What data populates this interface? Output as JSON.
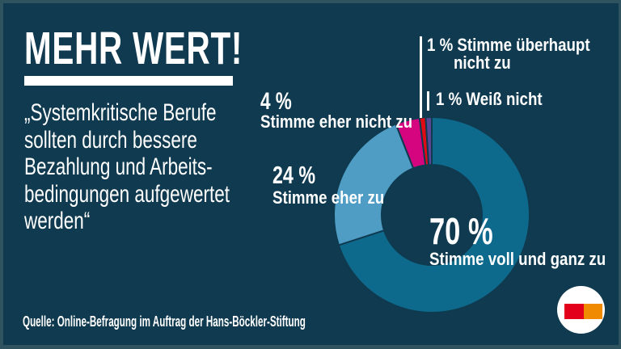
{
  "header": {
    "title": "MEHR WERT!"
  },
  "quote": {
    "text": "„Systemkritische Berufe\nsollten durch bessere\nBezahlung und Arbeits-\nbedingungen aufgewertet\nwerden“"
  },
  "source": {
    "text": "Quelle: Online-Befragung im Auftrag der Hans-Böckler-Stiftung"
  },
  "chart_data": {
    "type": "pie",
    "subtype": "donut",
    "title": "MEHR WERT!",
    "question": "Systemkritische Berufe sollten durch bessere Bezahlung und Arbeitsbedingungen aufgewertet werden",
    "unit": "%",
    "direction": "clockwise",
    "start_angle_deg": 0,
    "segments": [
      {
        "label": "Stimme voll und ganz zu",
        "value": 70,
        "color": "#0E6A8C"
      },
      {
        "label": "Stimme eher zu",
        "value": 24,
        "color": "#4F9DC4"
      },
      {
        "label": "Stimme eher nicht zu",
        "value": 4,
        "color": "#D5047F"
      },
      {
        "label": "Stimme überhaupt nicht zu",
        "value": 1,
        "color": "#E30B13"
      },
      {
        "label": "Weiß nicht",
        "value": 1,
        "color": "#564897"
      }
    ]
  },
  "labels": {
    "seg70": {
      "value": "70 %",
      "text": "Stimme voll und ganz zu"
    },
    "seg24": {
      "value": "24 %",
      "text": "Stimme eher zu"
    },
    "seg4": {
      "value": "4 %",
      "text": "Stimme eher nicht zu"
    },
    "seg1_nicht": {
      "line1": "1 % Stimme überhaupt",
      "line2": "nicht zu"
    },
    "seg1_weiss": {
      "text": "1 % Weiß nicht"
    }
  },
  "colors": {
    "panel_background": "#0F3A4F",
    "frame": "#2F535F",
    "text": "#FFFFFF",
    "segment_teal": "#0E6A8C",
    "segment_lightblue": "#4F9DC4",
    "segment_magenta": "#D5047F",
    "segment_red": "#E30B13",
    "segment_purple": "#564897",
    "logo_red": "#E2001A",
    "logo_orange": "#F08A00"
  }
}
